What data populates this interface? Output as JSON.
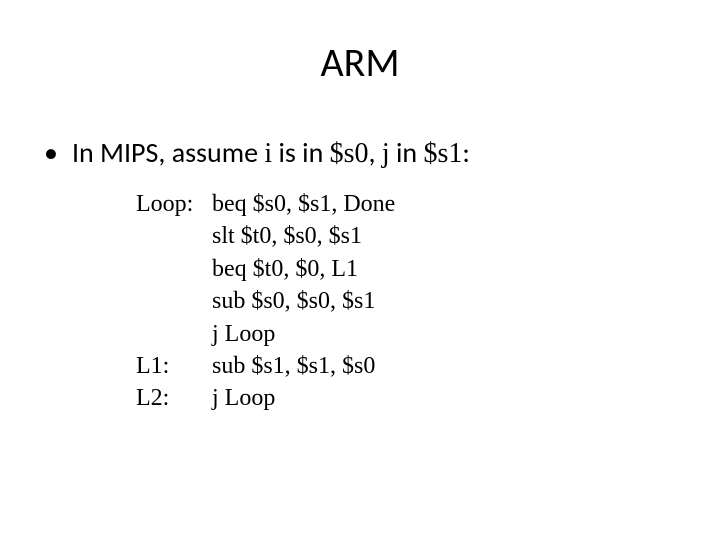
{
  "title": "ARM",
  "bullet": {
    "prefix": "In MIPS, assume ",
    "var1": "i",
    "mid1": " is in ",
    "reg1": "$s0",
    "mid2": ", ",
    "var2": "j",
    "mid3": " in ",
    "reg2": "$s1",
    "suffix": ":"
  },
  "code": [
    {
      "label": "Loop:",
      "instr": "beq $s0, $s1, Done"
    },
    {
      "label": "",
      "instr": "slt $t0, $s0, $s1"
    },
    {
      "label": "",
      "instr": "beq $t0, $0, L1"
    },
    {
      "label": "",
      "instr": "sub $s0, $s0, $s1"
    },
    {
      "label": "",
      "instr": "j Loop"
    },
    {
      "label": "L1:",
      "instr": "sub $s1, $s1, $s0"
    },
    {
      "label": "L2:",
      "instr": "j Loop"
    }
  ],
  "style": {
    "background": "#ffffff",
    "title_fontsize": 40,
    "bullet_fontsize": 28,
    "code_fontsize": 24,
    "text_color": "#000000"
  }
}
